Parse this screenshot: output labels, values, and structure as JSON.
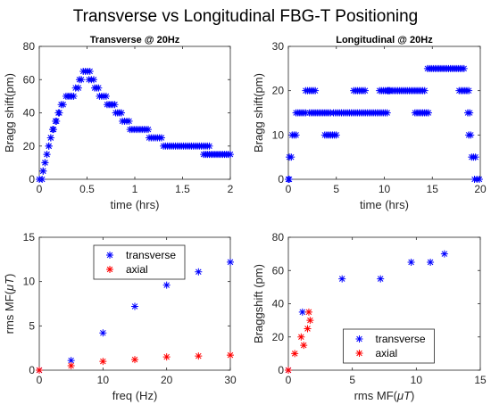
{
  "suptitle": "Transverse vs Longitudinal FBG-T Positioning",
  "colors": {
    "transverse": "#0000ff",
    "axial": "#ff0000",
    "axis": "#262626"
  },
  "chart_data": [
    {
      "type": "scatter",
      "title": "Transverse @ 20Hz",
      "xlabel": "time (hrs)",
      "ylabel": "Bragg shift(pm)",
      "xlim": [
        0,
        2
      ],
      "ylim": [
        0,
        80
      ],
      "xticks": [
        0,
        0.5,
        1,
        1.5,
        2
      ],
      "xticklabels": [
        "0",
        "0.5",
        "1",
        "1.5",
        "2"
      ],
      "yticks": [
        0,
        20,
        40,
        60,
        80
      ],
      "yticklabels": [
        "0",
        "20",
        "40",
        "60",
        "80"
      ],
      "grid": false,
      "series": [
        {
          "color": "#0000ff",
          "segments": [
            {
              "x": [
                0.0,
                0.03
              ],
              "y": 0
            },
            {
              "x": [
                0.04,
                0.04
              ],
              "y": 5
            },
            {
              "x": [
                0.06,
                0.06
              ],
              "y": 10
            },
            {
              "x": [
                0.08,
                0.08
              ],
              "y": 15
            },
            {
              "x": [
                0.1,
                0.1
              ],
              "y": 20
            },
            {
              "x": [
                0.12,
                0.12
              ],
              "y": 25
            },
            {
              "x": [
                0.14,
                0.15
              ],
              "y": 30
            },
            {
              "x": [
                0.17,
                0.18
              ],
              "y": 35
            },
            {
              "x": [
                0.2,
                0.21
              ],
              "y": 40
            },
            {
              "x": [
                0.23,
                0.25
              ],
              "y": 45
            },
            {
              "x": [
                0.28,
                0.36
              ],
              "y": 50
            },
            {
              "x": [
                0.38,
                0.41
              ],
              "y": 55
            },
            {
              "x": [
                0.42,
                0.44
              ],
              "y": 60
            },
            {
              "x": [
                0.46,
                0.53
              ],
              "y": 65
            },
            {
              "x": [
                0.52,
                0.57
              ],
              "y": 60
            },
            {
              "x": [
                0.58,
                0.62
              ],
              "y": 55
            },
            {
              "x": [
                0.63,
                0.7
              ],
              "y": 50
            },
            {
              "x": [
                0.71,
                0.79
              ],
              "y": 45
            },
            {
              "x": [
                0.8,
                0.86
              ],
              "y": 40
            },
            {
              "x": [
                0.87,
                0.94
              ],
              "y": 35
            },
            {
              "x": [
                0.95,
                1.14
              ],
              "y": 30
            },
            {
              "x": [
                1.15,
                1.28
              ],
              "y": 25
            },
            {
              "x": [
                1.3,
                1.78
              ],
              "y": 20
            },
            {
              "x": [
                1.72,
                2.0
              ],
              "y": 15
            }
          ]
        }
      ]
    },
    {
      "type": "scatter",
      "title": "Longitudinal @ 20Hz",
      "xlabel": "time (hrs)",
      "ylabel": "Bragg shift(pm)",
      "xlim": [
        0,
        20
      ],
      "ylim": [
        0,
        30
      ],
      "xticks": [
        0,
        5,
        10,
        15,
        20
      ],
      "xticklabels": [
        "0",
        "5",
        "10",
        "15",
        "20"
      ],
      "yticks": [
        0,
        10,
        20,
        30
      ],
      "yticklabels": [
        "0",
        "10",
        "20",
        "30"
      ],
      "grid": false,
      "series": [
        {
          "color": "#0000ff",
          "segments": [
            {
              "x": [
                0.0,
                0.1
              ],
              "y": 0
            },
            {
              "x": [
                0.1,
                0.3
              ],
              "y": 5
            },
            {
              "x": [
                0.4,
                0.8
              ],
              "y": 10
            },
            {
              "x": [
                0.8,
                1.8
              ],
              "y": 15
            },
            {
              "x": [
                1.8,
                2.8
              ],
              "y": 20
            },
            {
              "x": [
                2.2,
                4.4
              ],
              "y": 15
            },
            {
              "x": [
                3.8,
                5.0
              ],
              "y": 10
            },
            {
              "x": [
                4.7,
                10.3
              ],
              "y": 15
            },
            {
              "x": [
                6.8,
                8.0
              ],
              "y": 20
            },
            {
              "x": [
                9.5,
                10.5
              ],
              "y": 20
            },
            {
              "x": [
                10.4,
                14.2
              ],
              "y": 20
            },
            {
              "x": [
                13.2,
                14.6
              ],
              "y": 15
            },
            {
              "x": [
                14.5,
                18.3
              ],
              "y": 25
            },
            {
              "x": [
                17.8,
                18.8
              ],
              "y": 20
            },
            {
              "x": [
                18.7,
                18.9
              ],
              "y": 15
            },
            {
              "x": [
                18.8,
                19.0
              ],
              "y": 10
            },
            {
              "x": [
                19.1,
                19.5
              ],
              "y": 5
            },
            {
              "x": [
                19.4,
                19.9
              ],
              "y": 0
            }
          ]
        }
      ]
    },
    {
      "type": "scatter",
      "xlabel": "freq (Hz)",
      "ylabel": "rms MF(",
      "ylabel_symbol": "μT",
      "ylabel_close": ")",
      "xlim": [
        0,
        30
      ],
      "ylim": [
        0,
        15
      ],
      "xticks": [
        0,
        10,
        20,
        30
      ],
      "xticklabels": [
        "0",
        "10",
        "20",
        "30"
      ],
      "yticks": [
        0,
        5,
        10,
        15
      ],
      "yticklabels": [
        "0",
        "5",
        "10",
        "15"
      ],
      "legend": "top-center",
      "grid": false,
      "series": [
        {
          "name": "transverse",
          "color": "#0000ff",
          "x": [
            0,
            5,
            10,
            15,
            20,
            25,
            30
          ],
          "y": [
            0,
            1.1,
            4.2,
            7.2,
            9.6,
            11.1,
            12.2
          ]
        },
        {
          "name": "axial",
          "color": "#ff0000",
          "x": [
            0,
            5,
            10,
            15,
            20,
            25,
            30
          ],
          "y": [
            0,
            0.5,
            1.0,
            1.2,
            1.5,
            1.6,
            1.7
          ]
        }
      ]
    },
    {
      "type": "scatter",
      "xlabel": "rms MF(",
      "xlabel_symbol": "μT",
      "xlabel_close": ")",
      "ylabel": "Braggshift (pm)",
      "xlim": [
        0,
        15
      ],
      "ylim": [
        0,
        80
      ],
      "xticks": [
        0,
        5,
        10,
        15
      ],
      "xticklabels": [
        "0",
        "5",
        "10",
        "15"
      ],
      "yticks": [
        0,
        20,
        40,
        60,
        80
      ],
      "yticklabels": [
        "0",
        "20",
        "40",
        "60",
        "80"
      ],
      "legend": "bottom-center",
      "grid": false,
      "series": [
        {
          "name": "transverse",
          "color": "#0000ff",
          "x": [
            0,
            1.1,
            4.2,
            7.2,
            9.6,
            11.1,
            12.2
          ],
          "y": [
            0,
            35,
            55,
            55,
            65,
            65,
            70
          ]
        },
        {
          "name": "axial",
          "color": "#ff0000",
          "x": [
            0,
            0.5,
            1.0,
            1.2,
            1.5,
            1.6,
            1.7
          ],
          "y": [
            0,
            10,
            20,
            15,
            25,
            35,
            30
          ]
        }
      ]
    }
  ]
}
